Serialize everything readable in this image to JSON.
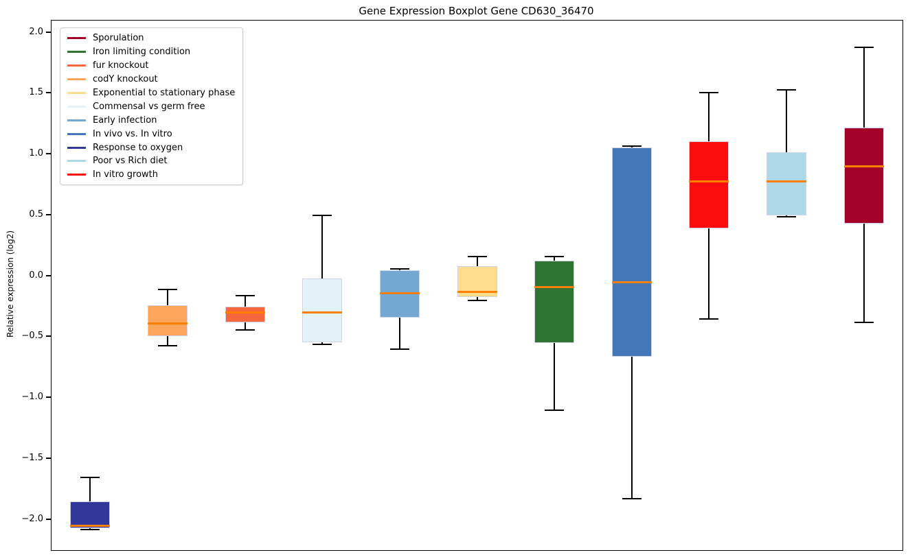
{
  "chart_data": {
    "type": "boxplot",
    "title": "Gene Expression Boxplot Gene CD630_36470",
    "xlabel": "",
    "ylabel": "Relative expression (log2)",
    "ylim": [
      -2.25,
      2.1
    ],
    "yticks": [
      2.0,
      1.5,
      1.0,
      0.5,
      0.0,
      -0.5,
      -1.0,
      -1.5,
      -2.0
    ],
    "grid": false,
    "legend_position": "upper left",
    "median_color": "#ff8000",
    "whisker_color": "#000000",
    "series": [
      {
        "name": "Response to oxygen",
        "color": "#32389a",
        "min": -2.08,
        "q1": -2.07,
        "median": -2.05,
        "q3": -1.85,
        "max": -1.65
      },
      {
        "name": "codY knockout",
        "color": "#fca65c",
        "min": -0.57,
        "q1": -0.49,
        "median": -0.39,
        "q3": -0.24,
        "max": -0.11
      },
      {
        "name": "fur knockout",
        "color": "#f6673e",
        "min": -0.44,
        "q1": -0.38,
        "median": -0.3,
        "q3": -0.25,
        "max": -0.16
      },
      {
        "name": "Commensal vs germ free",
        "color": "#e3f2f9",
        "min": -0.56,
        "q1": -0.54,
        "median": -0.3,
        "q3": -0.02,
        "max": 0.5
      },
      {
        "name": "Early infection",
        "color": "#72a8d1",
        "min": -0.6,
        "q1": -0.34,
        "median": -0.14,
        "q3": 0.05,
        "max": 0.06
      },
      {
        "name": "Exponential to stationary phase",
        "color": "#fcdd8e",
        "min": -0.2,
        "q1": -0.17,
        "median": -0.13,
        "q3": 0.08,
        "max": 0.16
      },
      {
        "name": "Iron limiting condition",
        "color": "#2d7331",
        "min": -1.1,
        "q1": -0.55,
        "median": -0.09,
        "q3": 0.13,
        "max": 0.16
      },
      {
        "name": "In vivo vs. In vitro",
        "color": "#4477b8",
        "min": -1.83,
        "q1": -0.66,
        "median": -0.05,
        "q3": 1.06,
        "max": 1.07
      },
      {
        "name": "In vitro growth",
        "color": "#fc0d0d",
        "min": -0.35,
        "q1": 0.39,
        "median": 0.78,
        "q3": 1.11,
        "max": 1.51
      },
      {
        "name": "Poor vs Rich diet",
        "color": "#aed9e8",
        "min": 0.49,
        "q1": 0.5,
        "median": 0.78,
        "q3": 1.02,
        "max": 1.53
      },
      {
        "name": "Sporulation",
        "color": "#a30229",
        "min": -0.38,
        "q1": 0.43,
        "median": 0.9,
        "q3": 1.22,
        "max": 1.88
      }
    ],
    "legend_order": [
      "Sporulation",
      "Iron limiting condition",
      "fur knockout",
      "codY knockout",
      "Exponential to stationary phase",
      "Commensal vs germ free",
      "Early infection",
      "In vivo vs. In vitro",
      "Response to oxygen",
      "Poor vs Rich diet",
      "In vitro growth"
    ]
  }
}
